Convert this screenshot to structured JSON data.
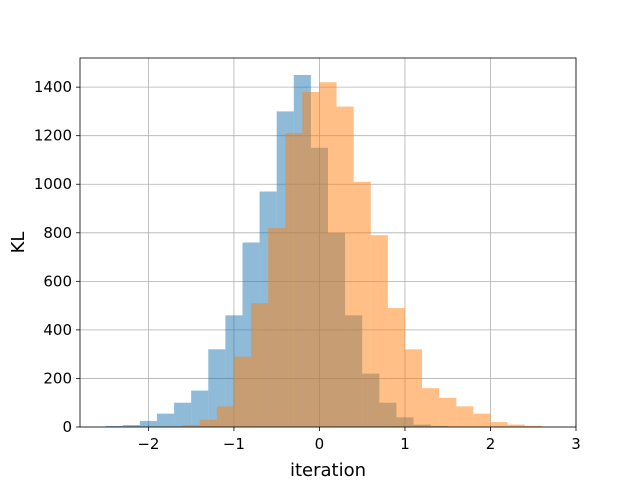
{
  "chart_data": {
    "type": "bar",
    "title": "",
    "xlabel": "iteration",
    "ylabel": "KL",
    "xlim": [
      -2.8,
      3.0
    ],
    "ylim": [
      0,
      1520
    ],
    "grid": true,
    "x_ticks": [
      -2,
      -1,
      0,
      1,
      2,
      3
    ],
    "x_tick_labels": [
      "−2",
      "−1",
      "0",
      "1",
      "2",
      "3"
    ],
    "y_ticks": [
      0,
      200,
      400,
      600,
      800,
      1000,
      1200,
      1400
    ],
    "y_tick_labels": [
      "0",
      "200",
      "400",
      "600",
      "800",
      "1000",
      "1200",
      "1400"
    ],
    "series": [
      {
        "color": "#1f77b4",
        "opacity": 0.5,
        "bin_start": -2.7,
        "bin_width": 0.2,
        "values": [
          1,
          4,
          8,
          25,
          55,
          100,
          150,
          320,
          460,
          760,
          970,
          1300,
          1450,
          1150,
          800,
          460,
          220,
          100,
          40,
          10,
          4,
          2,
          0,
          0
        ]
      },
      {
        "color": "#ff7f0e",
        "opacity": 0.5,
        "bin_start": -1.8,
        "bin_width": 0.2,
        "values": [
          2,
          8,
          30,
          85,
          290,
          510,
          820,
          1210,
          1380,
          1420,
          1320,
          1010,
          790,
          490,
          320,
          160,
          120,
          85,
          55,
          20,
          10,
          5
        ]
      }
    ]
  }
}
